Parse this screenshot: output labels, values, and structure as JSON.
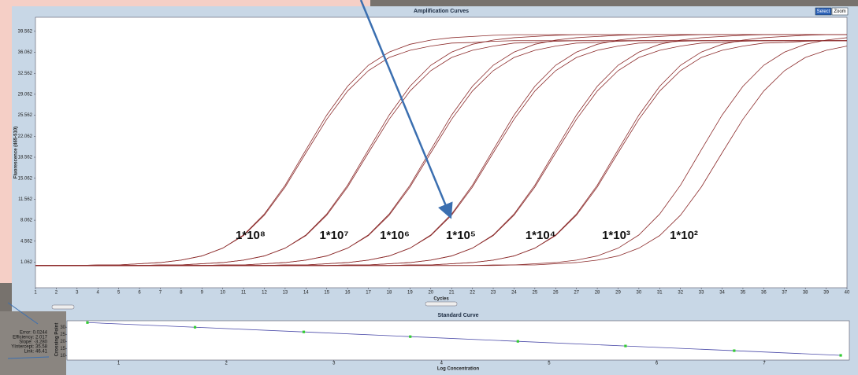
{
  "toolbar": {
    "buttons": [
      "Select",
      "Zoom"
    ]
  },
  "stats_panel": {
    "lines": [
      "Error: 0.0244",
      "Efficiency: 2.017",
      "Slope: -3.280",
      "YIntercept: 35.58",
      "Link: 46.41"
    ]
  },
  "chart_data": [
    {
      "type": "line",
      "title": "Amplification Curves",
      "x_label": "Cycles",
      "y_label": "Fluorescence (465-510)",
      "x": [
        1,
        2,
        3,
        4,
        5,
        6,
        7,
        8,
        9,
        10,
        11,
        12,
        13,
        14,
        15,
        16,
        17,
        18,
        19,
        20,
        21,
        22,
        23,
        24,
        25,
        26,
        27,
        28,
        29,
        30,
        31,
        32,
        33,
        34,
        35,
        36,
        37,
        38,
        39,
        40
      ],
      "xlim": [
        1,
        40
      ],
      "xticks": [
        1,
        2,
        3,
        4,
        5,
        6,
        7,
        8,
        9,
        10,
        11,
        12,
        13,
        14,
        15,
        16,
        17,
        18,
        19,
        20,
        21,
        22,
        23,
        24,
        25,
        26,
        27,
        28,
        29,
        30,
        31,
        32,
        33,
        34,
        35,
        36,
        37,
        38,
        39,
        40
      ],
      "ylim": [
        -3.2,
        41.9
      ],
      "yticks": [
        1.062,
        4.562,
        8.062,
        11.562,
        15.062,
        18.562,
        22.062,
        25.562,
        29.062,
        32.562,
        36.062,
        39.562
      ],
      "annotations": [
        "1*10⁸",
        "1*10⁷",
        "1*10⁶",
        "1*10⁵",
        "1*10⁴",
        "1*10³",
        "1*10²"
      ],
      "series": [
        {
          "color": "#8b2a2a",
          "values": [
            0.5,
            0.5,
            0.5,
            0.6,
            0.6,
            0.8,
            1,
            1.4,
            2.1,
            3.4,
            5.6,
            9.1,
            13.9,
            19.8,
            25.6,
            30.4,
            33.9,
            36.1,
            37.4,
            38.1,
            38.5,
            38.7,
            38.9,
            39,
            39,
            39,
            39,
            39,
            39,
            39,
            39,
            39,
            39,
            39,
            39,
            39,
            39,
            39,
            39,
            39
          ]
        },
        {
          "color": "#8b2a2a",
          "values": [
            0.5,
            0.5,
            0.5,
            0.6,
            0.6,
            0.8,
            1,
            1.4,
            2.1,
            3.4,
            5.5,
            8.9,
            13.6,
            19.3,
            24.9,
            29.6,
            33,
            35.2,
            36.4,
            37.1,
            37.6,
            37.7,
            37.9,
            38,
            38,
            38,
            38,
            38,
            38,
            38,
            38,
            38,
            38,
            38,
            38,
            38,
            38,
            38,
            38,
            38
          ]
        },
        {
          "color": "#8b2a2a",
          "values": [
            0.5,
            0.5,
            0.5,
            0.5,
            0.5,
            0.5,
            0.6,
            0.6,
            0.8,
            1,
            1.4,
            2.1,
            3.4,
            5.6,
            9.1,
            13.9,
            19.8,
            25.6,
            30.4,
            33.9,
            36.1,
            37.4,
            38.1,
            38.5,
            38.7,
            38.9,
            39,
            39,
            39,
            39,
            39,
            39,
            39,
            39,
            39,
            39,
            39,
            39,
            39,
            39
          ]
        },
        {
          "color": "#8b2a2a",
          "values": [
            0.5,
            0.5,
            0.5,
            0.5,
            0.5,
            0.5,
            0.6,
            0.6,
            0.8,
            1,
            1.4,
            2.1,
            3.4,
            5.5,
            8.9,
            13.6,
            19.3,
            24.9,
            29.6,
            33,
            35.2,
            36.4,
            37.1,
            37.6,
            37.7,
            37.9,
            38,
            38,
            38,
            38,
            38,
            38,
            38,
            38,
            38,
            38,
            38,
            38,
            38,
            38
          ]
        },
        {
          "color": "#8b2a2a",
          "values": [
            0.5,
            0.5,
            0.5,
            0.5,
            0.5,
            0.5,
            0.5,
            0.5,
            0.5,
            0.6,
            0.6,
            0.8,
            1,
            1.4,
            2.1,
            3.4,
            5.6,
            9.1,
            13.9,
            19.8,
            25.6,
            30.4,
            33.9,
            36.1,
            37.4,
            38.1,
            38.5,
            38.7,
            38.9,
            39,
            39,
            39,
            39,
            39,
            39,
            39,
            39,
            39,
            39,
            39
          ]
        },
        {
          "color": "#8b2a2a",
          "values": [
            0.5,
            0.5,
            0.5,
            0.5,
            0.5,
            0.5,
            0.5,
            0.5,
            0.5,
            0.6,
            0.6,
            0.8,
            1,
            1.4,
            2.1,
            3.4,
            5.5,
            8.9,
            13.6,
            19.3,
            24.9,
            29.6,
            33,
            35.2,
            36.4,
            37.1,
            37.6,
            37.7,
            37.9,
            38,
            38,
            38,
            38,
            38,
            38,
            38,
            38,
            38,
            38,
            38
          ]
        },
        {
          "color": "#8b2a2a",
          "values": [
            0.5,
            0.5,
            0.5,
            0.5,
            0.5,
            0.5,
            0.5,
            0.5,
            0.5,
            0.5,
            0.5,
            0.5,
            0.6,
            0.6,
            0.8,
            1,
            1.4,
            2.1,
            3.4,
            5.6,
            9.1,
            13.9,
            19.8,
            25.6,
            30.4,
            33.9,
            36.1,
            37.4,
            38.1,
            38.5,
            38.7,
            38.9,
            39,
            39,
            39,
            39,
            39,
            39,
            39,
            39
          ]
        },
        {
          "color": "#8b2a2a",
          "values": [
            0.5,
            0.5,
            0.5,
            0.5,
            0.5,
            0.5,
            0.5,
            0.5,
            0.5,
            0.5,
            0.5,
            0.5,
            0.6,
            0.6,
            0.8,
            1,
            1.4,
            2.1,
            3.4,
            5.5,
            8.9,
            13.6,
            19.3,
            24.9,
            29.6,
            33,
            35.2,
            36.4,
            37.1,
            37.6,
            37.7,
            37.9,
            38,
            38,
            38,
            38,
            38,
            38,
            38,
            38
          ]
        },
        {
          "color": "#8b2a2a",
          "values": [
            0.5,
            0.5,
            0.5,
            0.5,
            0.5,
            0.5,
            0.5,
            0.5,
            0.5,
            0.5,
            0.5,
            0.5,
            0.5,
            0.5,
            0.5,
            0.6,
            0.6,
            0.8,
            1,
            1.4,
            2.1,
            3.4,
            5.6,
            9.1,
            13.9,
            19.8,
            25.6,
            30.4,
            33.9,
            36.1,
            37.4,
            38.1,
            38.5,
            38.7,
            38.9,
            39,
            39,
            39,
            39,
            39
          ]
        },
        {
          "color": "#8b2a2a",
          "values": [
            0.5,
            0.5,
            0.5,
            0.5,
            0.5,
            0.5,
            0.5,
            0.5,
            0.5,
            0.5,
            0.5,
            0.5,
            0.5,
            0.5,
            0.5,
            0.6,
            0.6,
            0.8,
            1,
            1.4,
            2.1,
            3.4,
            5.5,
            8.9,
            13.6,
            19.3,
            24.9,
            29.6,
            33,
            35.2,
            36.4,
            37.1,
            37.6,
            37.7,
            37.9,
            38,
            38,
            38,
            38,
            38
          ]
        },
        {
          "color": "#8b2a2a",
          "values": [
            0.5,
            0.5,
            0.5,
            0.5,
            0.5,
            0.5,
            0.5,
            0.5,
            0.5,
            0.5,
            0.5,
            0.5,
            0.5,
            0.5,
            0.5,
            0.5,
            0.5,
            0.5,
            0.6,
            0.6,
            0.8,
            1,
            1.4,
            2.1,
            3.4,
            5.6,
            9.1,
            13.9,
            19.8,
            25.6,
            30.4,
            33.9,
            36.1,
            37.4,
            38.1,
            38.5,
            38.7,
            38.9,
            39,
            39
          ]
        },
        {
          "color": "#8b2a2a",
          "values": [
            0.5,
            0.5,
            0.5,
            0.5,
            0.5,
            0.5,
            0.5,
            0.5,
            0.5,
            0.5,
            0.5,
            0.5,
            0.5,
            0.5,
            0.5,
            0.5,
            0.5,
            0.5,
            0.6,
            0.6,
            0.8,
            1,
            1.4,
            2.1,
            3.4,
            5.5,
            8.9,
            13.6,
            19.3,
            24.9,
            29.6,
            33,
            35.2,
            36.4,
            37.1,
            37.6,
            37.7,
            37.9,
            38,
            38
          ]
        },
        {
          "color": "#8b2a2a",
          "values": [
            0.5,
            0.5,
            0.5,
            0.5,
            0.5,
            0.5,
            0.5,
            0.5,
            0.5,
            0.5,
            0.5,
            0.5,
            0.5,
            0.5,
            0.5,
            0.5,
            0.5,
            0.5,
            0.5,
            0.5,
            0.5,
            0.5,
            0.6,
            0.6,
            0.8,
            1,
            1.4,
            2.1,
            3.4,
            5.6,
            9.1,
            13.9,
            19.8,
            25.6,
            30.4,
            33.9,
            36.1,
            37.4,
            38.1,
            38.5
          ]
        },
        {
          "color": "#8b2a2a",
          "values": [
            0.5,
            0.5,
            0.5,
            0.5,
            0.5,
            0.5,
            0.5,
            0.5,
            0.5,
            0.5,
            0.5,
            0.5,
            0.5,
            0.5,
            0.5,
            0.5,
            0.5,
            0.5,
            0.5,
            0.5,
            0.5,
            0.5,
            0.5,
            0.6,
            0.6,
            0.8,
            1,
            1.4,
            2.1,
            3.4,
            5.5,
            8.9,
            13.6,
            19.3,
            24.9,
            29.6,
            33,
            35.2,
            36.4,
            37.1
          ]
        }
      ]
    },
    {
      "type": "scatter",
      "title": "Standard Curve",
      "x_label": "Log Concentration",
      "y_label": "Crossing Point",
      "x": [
        0.71,
        1.71,
        2.72,
        3.71,
        4.71,
        5.71,
        6.72,
        7.71
      ],
      "values": [
        33.25,
        29.97,
        26.69,
        23.4,
        20.1,
        16.85,
        13.57,
        10.29
      ],
      "color": "#33cc33",
      "line_color": "#4a4aa8",
      "xlim": [
        0.52,
        7.79
      ],
      "xticks": [
        1,
        2,
        3,
        4,
        5,
        6,
        7
      ],
      "ylim": [
        7,
        34.5
      ],
      "yticks": [
        10,
        15,
        20,
        25,
        30
      ]
    }
  ]
}
